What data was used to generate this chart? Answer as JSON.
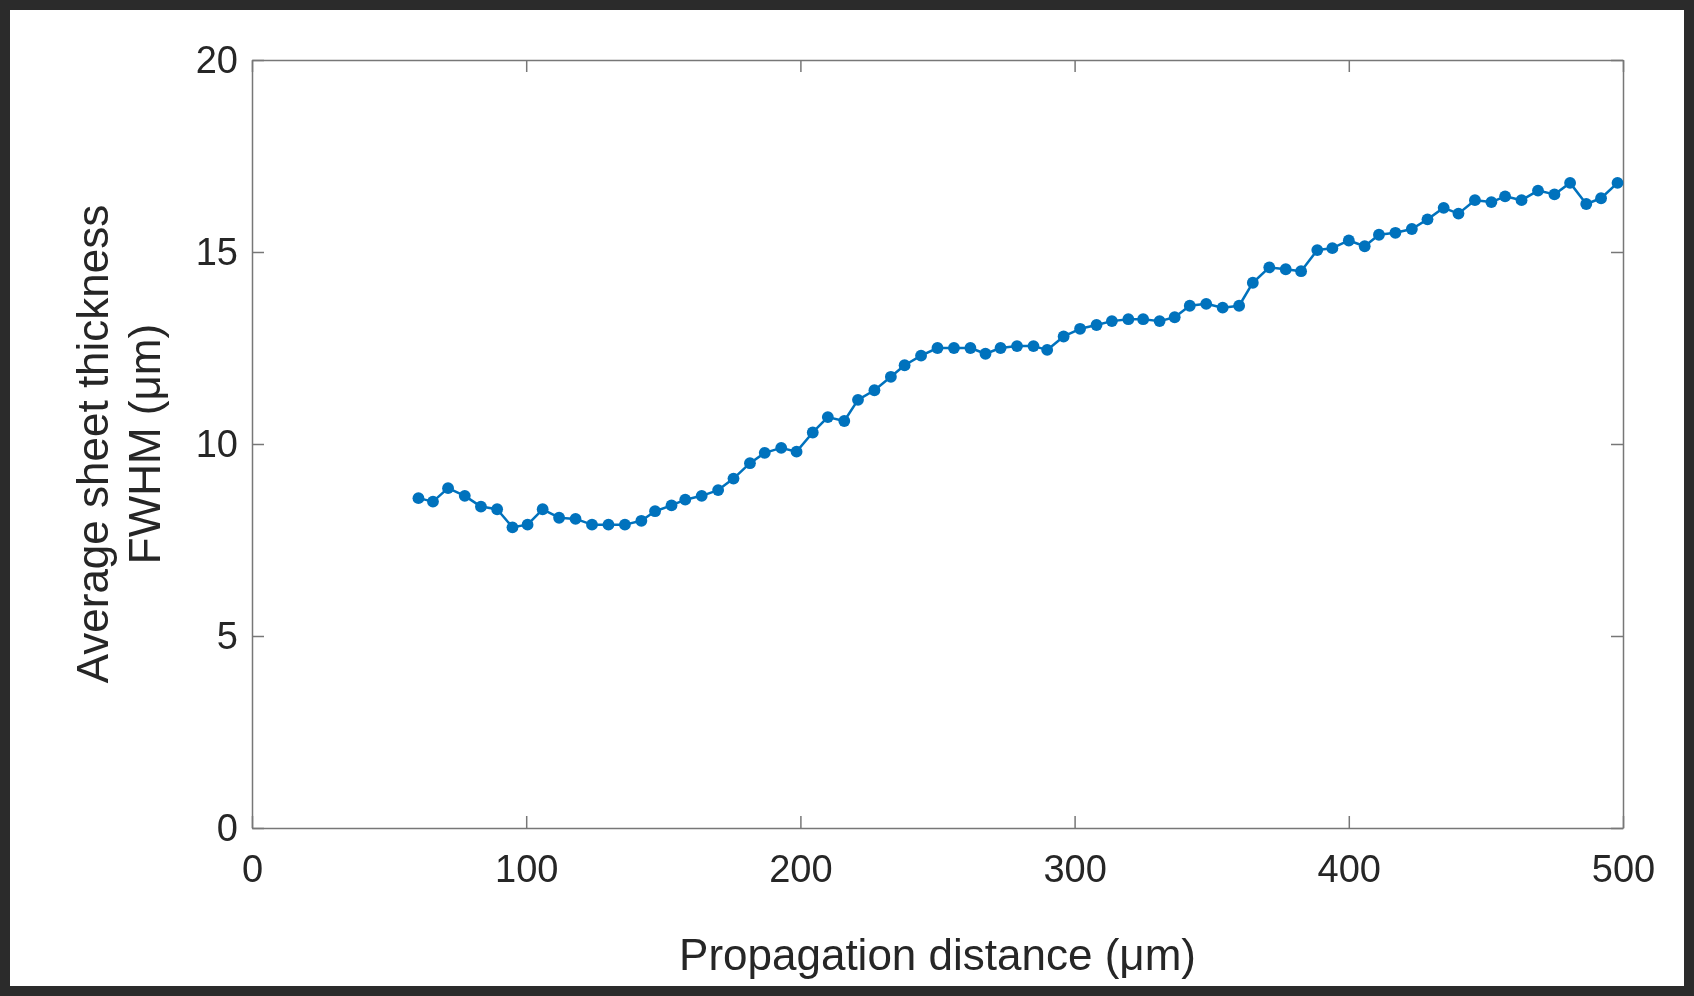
{
  "chart_data": {
    "type": "line",
    "xlabel": "Propagation distance (μm)",
    "ylabel": "Average sheet thickness\nFWHM (μm)",
    "xlim": [
      0,
      500
    ],
    "xticks": [
      0,
      100,
      200,
      300,
      400,
      500
    ],
    "ylim": [
      0,
      20
    ],
    "yticks": [
      0,
      5,
      10,
      15,
      20
    ],
    "grid": false,
    "marker": "circle",
    "line_style": "solid",
    "series": [
      {
        "color": "#0072bd",
        "x": [
          60.7,
          66,
          71.5,
          77.6,
          83.5,
          89.4,
          95,
          100.5,
          106,
          112,
          118,
          124,
          130,
          136,
          142,
          147,
          153,
          158,
          164,
          170,
          175.6,
          181.6,
          187,
          193,
          198.6,
          204.5,
          210,
          216,
          221,
          227,
          233,
          238,
          244,
          250,
          256,
          262,
          267.5,
          273,
          279,
          285,
          290,
          296,
          302,
          308,
          313.6,
          319.6,
          325,
          331,
          336.5,
          342,
          348,
          354,
          360,
          365,
          371,
          377,
          382.6,
          388.5,
          394,
          400,
          405.8,
          411,
          417,
          423,
          428.7,
          434.6,
          440,
          446,
          452,
          457,
          463,
          469,
          475,
          480.7,
          486.6,
          492,
          498
        ],
        "values": [
          8.59,
          8.5,
          8.85,
          8.65,
          8.37,
          8.3,
          7.83,
          7.9,
          8.3,
          8.08,
          8.05,
          7.9,
          7.9,
          7.9,
          8.0,
          8.25,
          8.4,
          8.55,
          8.65,
          8.8,
          9.1,
          9.5,
          9.77,
          9.9,
          9.8,
          10.3,
          10.7,
          10.6,
          11.15,
          11.4,
          11.75,
          12.05,
          12.3,
          12.5,
          12.5,
          12.5,
          12.35,
          12.5,
          12.55,
          12.55,
          12.45,
          12.8,
          13.0,
          13.1,
          13.2,
          13.25,
          13.25,
          13.2,
          13.3,
          13.6,
          13.65,
          13.55,
          13.6,
          14.2,
          14.6,
          14.55,
          14.5,
          15.05,
          15.1,
          15.3,
          15.15,
          15.45,
          15.5,
          15.6,
          15.85,
          16.15,
          16.0,
          16.35,
          16.3,
          16.45,
          16.35,
          16.6,
          16.5,
          16.8,
          16.25,
          16.4,
          16.8
        ]
      }
    ]
  }
}
